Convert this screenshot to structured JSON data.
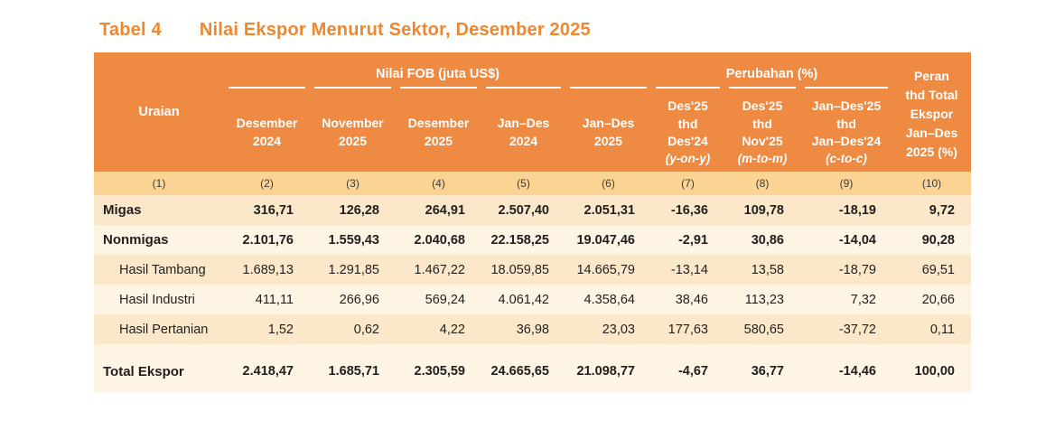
{
  "title": {
    "label": "Tabel 4",
    "text": "Nilai Ekspor Menurut Sektor, Desember 2025"
  },
  "colors": {
    "header_orange": "#ee8a42",
    "title_orange": "#ed8730",
    "band_tan": "#fbd494",
    "stripe_peach": "#fbe8cb",
    "stripe_cream": "#fdf4e4"
  },
  "table": {
    "uraian_header": "Uraian",
    "group_fob": "Nilai FOB (juta US$)",
    "group_perubahan": "Perubahan (%)",
    "peran_header": "Peran\nthd Total\nEkspor\nJan–Des\n2025 (%)",
    "columns": [
      {
        "top": "Desember\n2024",
        "sub": ""
      },
      {
        "top": "November\n2025",
        "sub": ""
      },
      {
        "top": "Desember\n2025",
        "sub": ""
      },
      {
        "top": "Jan–Des\n2024",
        "sub": ""
      },
      {
        "top": "Jan–Des\n2025",
        "sub": ""
      },
      {
        "top": "Des'25\nthd\nDes'24",
        "sub": "(y-on-y)"
      },
      {
        "top": "Des'25\nthd\nNov'25",
        "sub": "(m-to-m)"
      },
      {
        "top": "Jan–Des'25\nthd\nJan–Des'24",
        "sub": "(c-to-c)"
      }
    ],
    "col_numbers": [
      "(1)",
      "(2)",
      "(3)",
      "(4)",
      "(5)",
      "(6)",
      "(7)",
      "(8)",
      "(9)",
      "(10)"
    ],
    "rows": [
      {
        "label": "Migas",
        "indent": false,
        "bold": true,
        "values": [
          "316,71",
          "126,28",
          "264,91",
          "2.507,40",
          "2.051,31",
          "-16,36",
          "109,78",
          "-18,19",
          "9,72"
        ]
      },
      {
        "label": "Nonmigas",
        "indent": false,
        "bold": true,
        "values": [
          "2.101,76",
          "1.559,43",
          "2.040,68",
          "22.158,25",
          "19.047,46",
          "-2,91",
          "30,86",
          "-14,04",
          "90,28"
        ]
      },
      {
        "label": "Hasil Tambang",
        "indent": true,
        "bold": false,
        "values": [
          "1.689,13",
          "1.291,85",
          "1.467,22",
          "18.059,85",
          "14.665,79",
          "-13,14",
          "13,58",
          "-18,79",
          "69,51"
        ]
      },
      {
        "label": "Hasil Industri",
        "indent": true,
        "bold": false,
        "values": [
          "411,11",
          "266,96",
          "569,24",
          "4.061,42",
          "4.358,64",
          "38,46",
          "113,23",
          "7,32",
          "20,66"
        ]
      },
      {
        "label": "Hasil Pertanian",
        "indent": true,
        "bold": false,
        "values": [
          "1,52",
          "0,62",
          "4,22",
          "36,98",
          "23,03",
          "177,63",
          "580,65",
          "-37,72",
          "0,11"
        ]
      }
    ],
    "total_row": {
      "label": "Total Ekspor",
      "values": [
        "2.418,47",
        "1.685,71",
        "2.305,59",
        "24.665,65",
        "21.098,77",
        "-4,67",
        "36,77",
        "-14,46",
        "100,00"
      ]
    }
  }
}
